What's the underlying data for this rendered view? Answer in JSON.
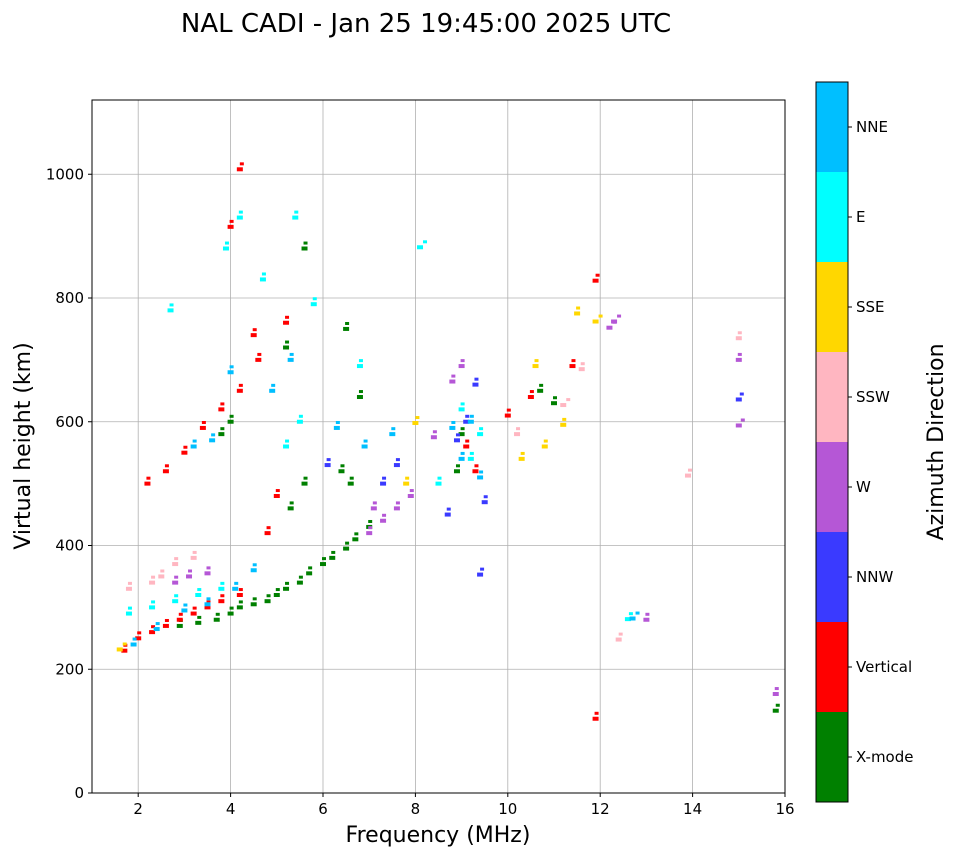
{
  "chart_data": {
    "type": "scatter",
    "title": "NAL CADI - Jan 25 19:45:00 2025 UTC",
    "xlabel": "Frequency (MHz)",
    "ylabel": "Virtual height (km)",
    "xlim": [
      1,
      16
    ],
    "ylim": [
      0,
      1120
    ],
    "xticks": [
      2,
      4,
      6,
      8,
      10,
      12,
      14,
      16
    ],
    "yticks": [
      0,
      200,
      400,
      600,
      800,
      1000
    ],
    "grid": true,
    "colorbar": {
      "label": "Azimuth Direction",
      "categories": [
        "X-mode",
        "Vertical",
        "NNW",
        "W",
        "SSW",
        "SSE",
        "E",
        "NNE"
      ],
      "colors": [
        "#008000",
        "#ff0000",
        "#3a3aff",
        "#b557d6",
        "#ffb6c1",
        "#ffd700",
        "#00ffff",
        "#00bfff"
      ]
    },
    "points": [
      [
        2.9,
        270,
        0
      ],
      [
        3.3,
        275,
        0
      ],
      [
        3.7,
        280,
        0
      ],
      [
        4.0,
        290,
        0
      ],
      [
        4.2,
        300,
        0
      ],
      [
        4.5,
        305,
        0
      ],
      [
        4.8,
        310,
        0
      ],
      [
        5.0,
        320,
        0
      ],
      [
        5.2,
        330,
        0
      ],
      [
        5.5,
        340,
        0
      ],
      [
        5.7,
        355,
        0
      ],
      [
        6.0,
        370,
        0
      ],
      [
        6.2,
        380,
        0
      ],
      [
        6.5,
        395,
        0
      ],
      [
        6.7,
        410,
        0
      ],
      [
        7.0,
        430,
        0
      ],
      [
        5.3,
        460,
        0
      ],
      [
        5.6,
        500,
        0
      ],
      [
        5.2,
        720,
        0
      ],
      [
        5.6,
        880,
        0
      ],
      [
        6.5,
        750,
        0
      ],
      [
        6.8,
        640,
        0
      ],
      [
        8.9,
        520,
        0
      ],
      [
        9.0,
        580,
        0
      ],
      [
        10.7,
        650,
        0
      ],
      [
        11.0,
        630,
        0
      ],
      [
        15.8,
        133,
        0
      ],
      [
        4.0,
        600,
        0
      ],
      [
        3.8,
        580,
        0
      ],
      [
        6.4,
        520,
        0
      ],
      [
        6.6,
        500,
        0
      ],
      [
        1.7,
        230,
        1
      ],
      [
        2.0,
        250,
        1
      ],
      [
        2.3,
        260,
        1
      ],
      [
        2.6,
        270,
        1
      ],
      [
        2.9,
        280,
        1
      ],
      [
        3.2,
        290,
        1
      ],
      [
        3.5,
        300,
        1
      ],
      [
        3.8,
        310,
        1
      ],
      [
        4.2,
        320,
        1
      ],
      [
        2.2,
        500,
        1
      ],
      [
        2.6,
        520,
        1
      ],
      [
        3.0,
        550,
        1
      ],
      [
        3.4,
        590,
        1
      ],
      [
        3.8,
        620,
        1
      ],
      [
        4.2,
        650,
        1
      ],
      [
        4.6,
        700,
        1
      ],
      [
        5.2,
        760,
        1
      ],
      [
        4.2,
        1008,
        1
      ],
      [
        4.0,
        915,
        1
      ],
      [
        10.0,
        610,
        1
      ],
      [
        11.4,
        690,
        1
      ],
      [
        11.9,
        828,
        1
      ],
      [
        11.9,
        120,
        1
      ],
      [
        9.1,
        560,
        1
      ],
      [
        10.5,
        640,
        1
      ],
      [
        4.8,
        420,
        1
      ],
      [
        5.0,
        480,
        1
      ],
      [
        9.3,
        520,
        1
      ],
      [
        4.5,
        740,
        1
      ],
      [
        8.7,
        450,
        2
      ],
      [
        9.5,
        470,
        2
      ],
      [
        9.4,
        353,
        2
      ],
      [
        15.0,
        636,
        2
      ],
      [
        9.3,
        660,
        2
      ],
      [
        9.1,
        600,
        2
      ],
      [
        8.9,
        570,
        2
      ],
      [
        6.1,
        530,
        2
      ],
      [
        7.3,
        500,
        2
      ],
      [
        7.6,
        530,
        2
      ],
      [
        2.8,
        340,
        3
      ],
      [
        3.1,
        350,
        3
      ],
      [
        3.5,
        355,
        3
      ],
      [
        7.0,
        420,
        3
      ],
      [
        7.3,
        440,
        3
      ],
      [
        7.6,
        460,
        3
      ],
      [
        7.9,
        480,
        3
      ],
      [
        9.0,
        690,
        3
      ],
      [
        8.8,
        665,
        3
      ],
      [
        15.0,
        700,
        3
      ],
      [
        15.0,
        594,
        3
      ],
      [
        15.8,
        160,
        3
      ],
      [
        12.3,
        762,
        3
      ],
      [
        12.2,
        752,
        3
      ],
      [
        13.0,
        280,
        3
      ],
      [
        8.4,
        575,
        3
      ],
      [
        7.1,
        460,
        3
      ],
      [
        2.3,
        340,
        4
      ],
      [
        2.5,
        350,
        4
      ],
      [
        2.8,
        370,
        4
      ],
      [
        3.2,
        380,
        4
      ],
      [
        1.8,
        330,
        4
      ],
      [
        13.9,
        513,
        4
      ],
      [
        15.0,
        735,
        4
      ],
      [
        12.4,
        248,
        4
      ],
      [
        11.6,
        685,
        4
      ],
      [
        11.2,
        627,
        4
      ],
      [
        10.2,
        580,
        4
      ],
      [
        1.6,
        232,
        5
      ],
      [
        11.5,
        775,
        5
      ],
      [
        11.9,
        762,
        5
      ],
      [
        10.6,
        690,
        5
      ],
      [
        10.8,
        560,
        5
      ],
      [
        11.2,
        595,
        5
      ],
      [
        8.0,
        598,
        5
      ],
      [
        10.3,
        540,
        5
      ],
      [
        7.8,
        500,
        5
      ],
      [
        1.8,
        290,
        6
      ],
      [
        2.3,
        300,
        6
      ],
      [
        2.8,
        310,
        6
      ],
      [
        3.3,
        320,
        6
      ],
      [
        3.8,
        330,
        6
      ],
      [
        4.2,
        930,
        6
      ],
      [
        3.9,
        880,
        6
      ],
      [
        8.1,
        882,
        6
      ],
      [
        5.4,
        930,
        6
      ],
      [
        4.7,
        830,
        6
      ],
      [
        9.2,
        540,
        6
      ],
      [
        9.0,
        620,
        6
      ],
      [
        9.4,
        580,
        6
      ],
      [
        8.5,
        500,
        6
      ],
      [
        5.5,
        600,
        6
      ],
      [
        5.2,
        560,
        6
      ],
      [
        2.7,
        780,
        6
      ],
      [
        12.6,
        281,
        6
      ],
      [
        5.8,
        790,
        6
      ],
      [
        6.8,
        690,
        6
      ],
      [
        1.9,
        240,
        7
      ],
      [
        2.4,
        265,
        7
      ],
      [
        3.0,
        295,
        7
      ],
      [
        3.5,
        305,
        7
      ],
      [
        4.1,
        330,
        7
      ],
      [
        4.5,
        360,
        7
      ],
      [
        3.6,
        570,
        7
      ],
      [
        3.2,
        560,
        7
      ],
      [
        4.0,
        680,
        7
      ],
      [
        5.3,
        700,
        7
      ],
      [
        4.9,
        650,
        7
      ],
      [
        9.0,
        540,
        7
      ],
      [
        9.2,
        600,
        7
      ],
      [
        8.8,
        590,
        7
      ],
      [
        12.7,
        282,
        7
      ],
      [
        6.3,
        590,
        7
      ],
      [
        6.9,
        560,
        7
      ],
      [
        9.4,
        510,
        7
      ],
      [
        7.5,
        580,
        7
      ]
    ]
  }
}
